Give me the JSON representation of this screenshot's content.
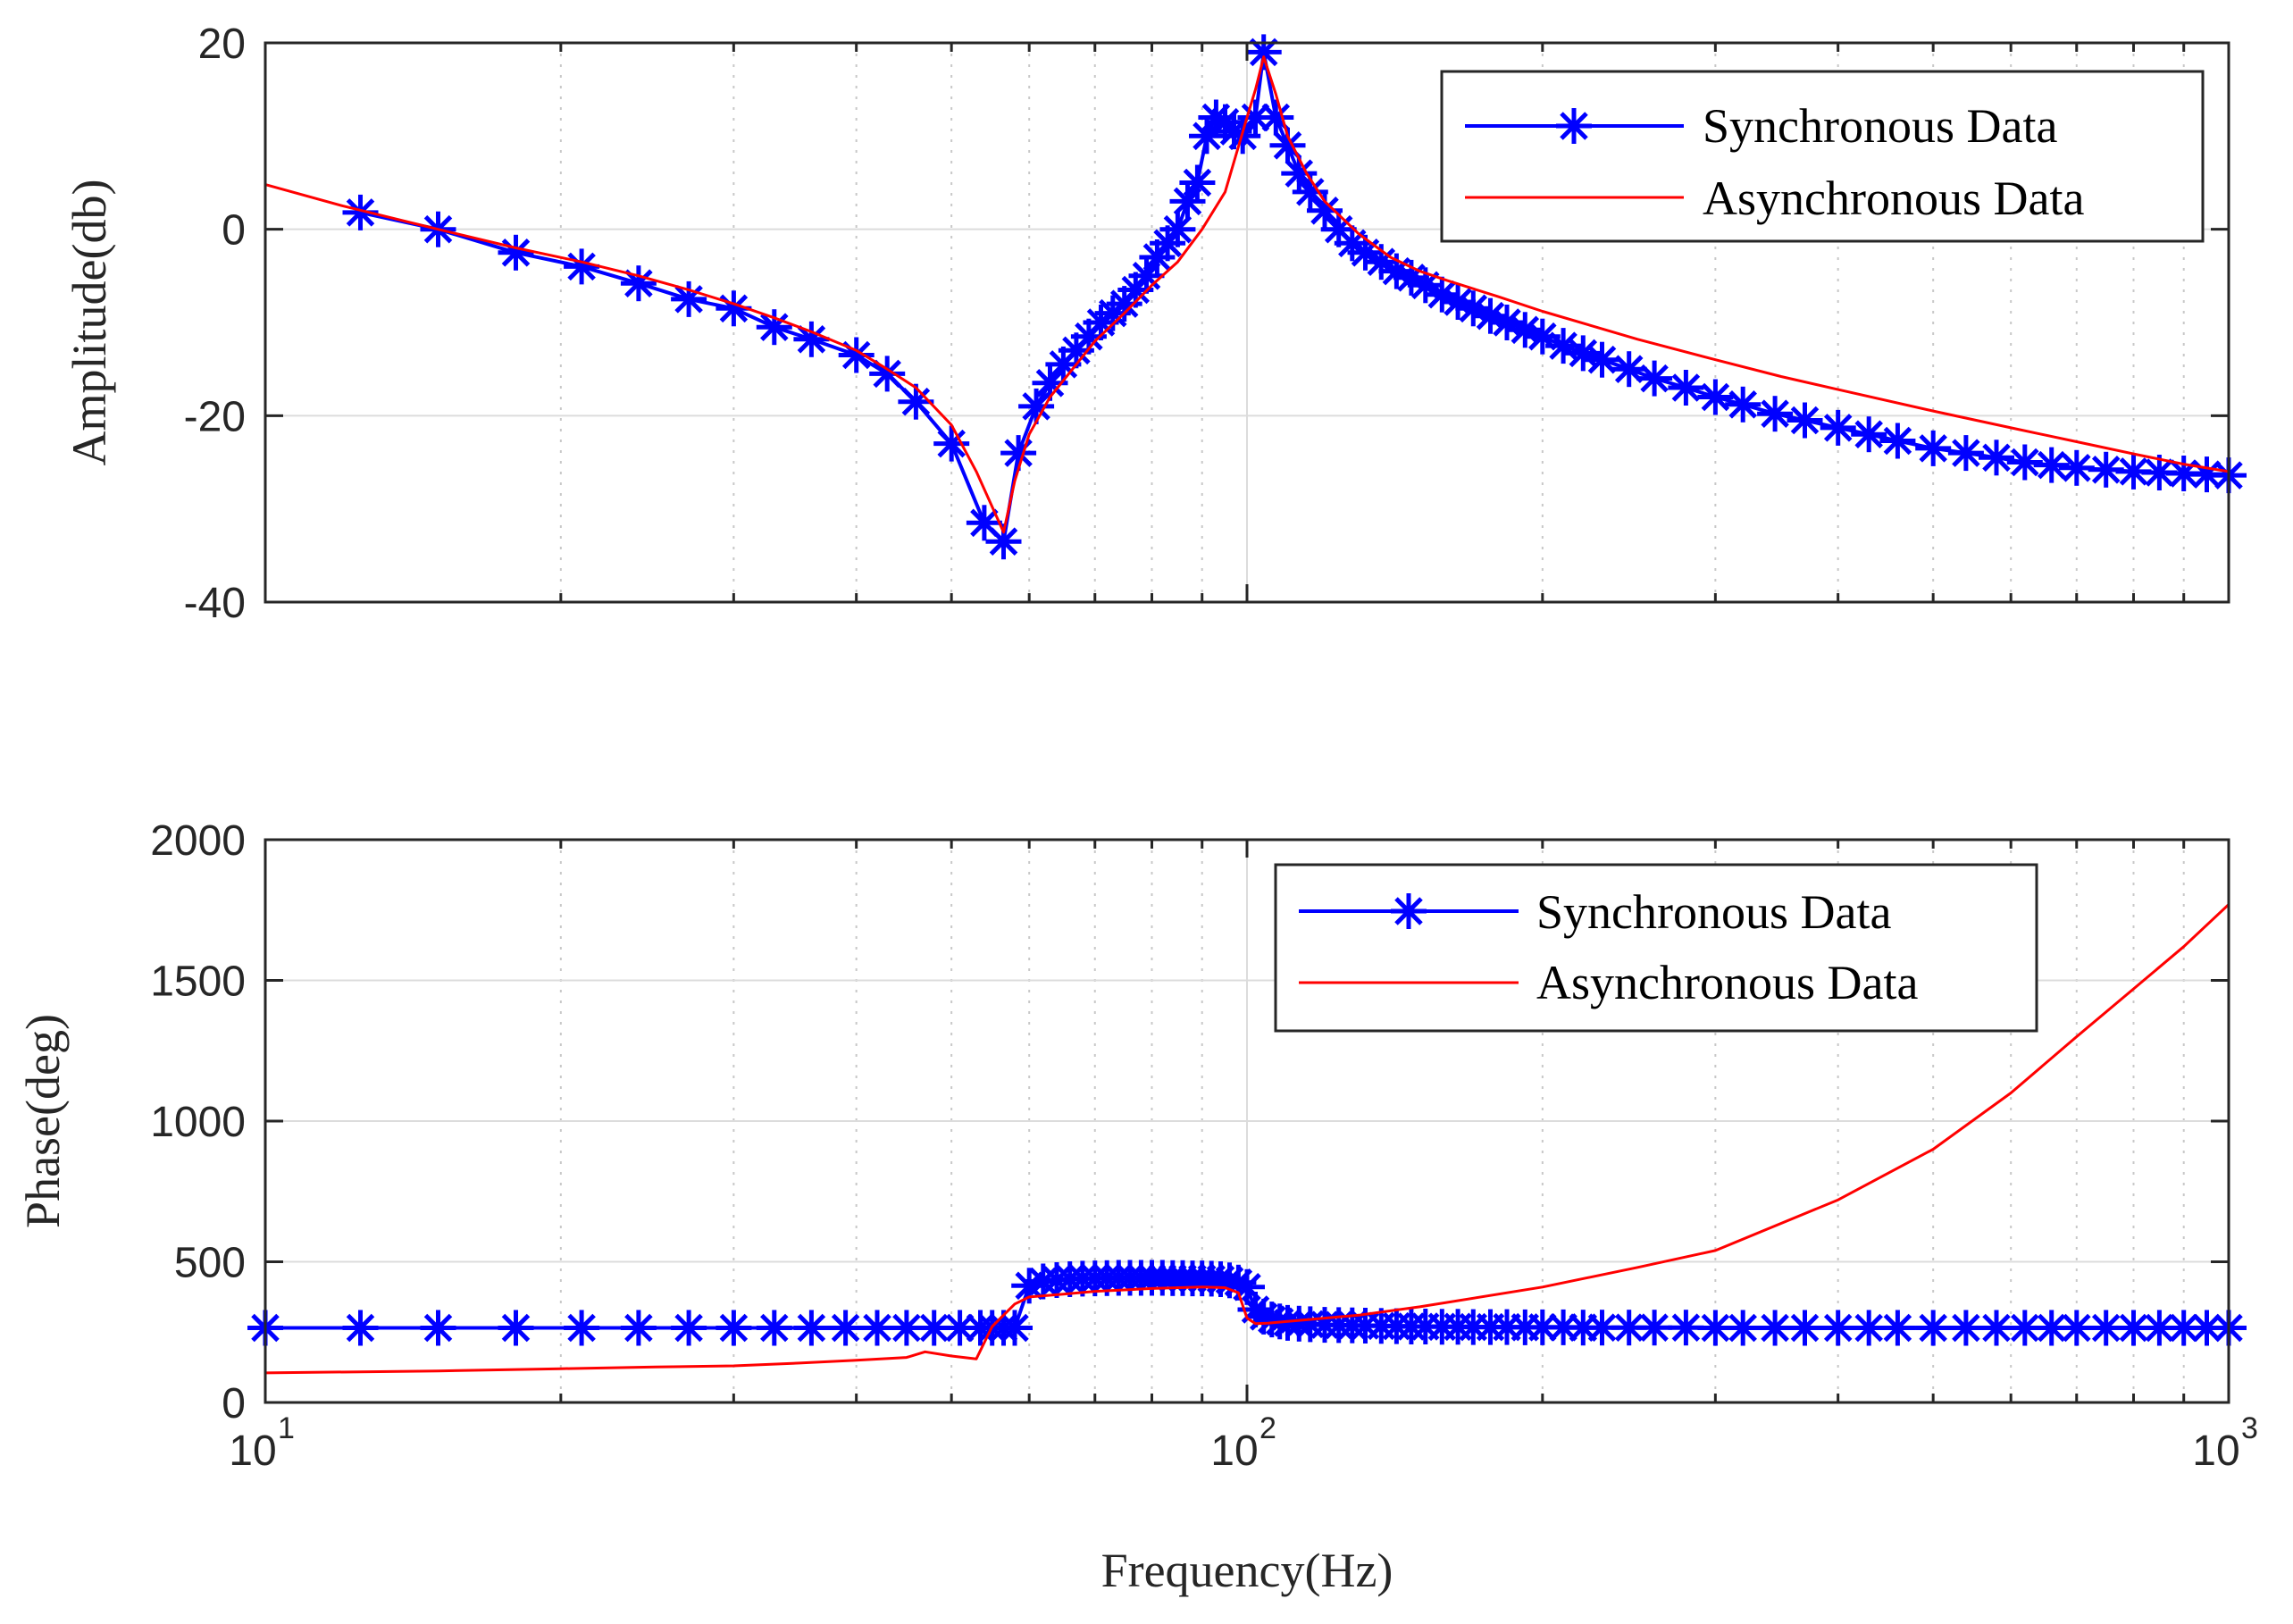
{
  "chart_data": [
    {
      "type": "line",
      "panel": "amplitude",
      "xscale": "log",
      "xlim": [
        10,
        1000
      ],
      "ylim": [
        -40,
        20
      ],
      "yticks": [
        -40,
        -20,
        0,
        20
      ],
      "ytick_labels": [
        "-40",
        "-20",
        "0",
        "20"
      ],
      "ylabel": "Amplitude(db)",
      "xlabel": "",
      "grid": true,
      "legend_position": "top-right",
      "series": [
        {
          "name": "Synchronous Data",
          "color": "#0000ff",
          "marker": "asterisk",
          "x": [
            12.5,
            15,
            18,
            21,
            24,
            27,
            30,
            33,
            36,
            40,
            43,
            46,
            50,
            54,
            56.5,
            58.5,
            61,
            63,
            65,
            67,
            69,
            71,
            73,
            75,
            77,
            79,
            81,
            83,
            85,
            87,
            89,
            91,
            93,
            95,
            97,
            99,
            102,
            104,
            107,
            110,
            113,
            116,
            120,
            124,
            128,
            132,
            137,
            142,
            147,
            152,
            158,
            164,
            170,
            177,
            184,
            192,
            200,
            210,
            220,
            230,
            245,
            260,
            280,
            300,
            320,
            345,
            370,
            400,
            430,
            460,
            500,
            540,
            580,
            620,
            660,
            700,
            750,
            800,
            850,
            900,
            950,
            1000
          ],
          "y": [
            1.8,
            0.0,
            -2.5,
            -4.0,
            -5.8,
            -7.5,
            -8.5,
            -10.5,
            -11.8,
            -13.5,
            -15.5,
            -18.5,
            -23.0,
            -31.5,
            -33.5,
            -24.0,
            -19.0,
            -16.5,
            -14.5,
            -13.0,
            -11.5,
            -10.0,
            -9.0,
            -8.0,
            -6.5,
            -5.0,
            -3.0,
            -1.5,
            0.0,
            3.0,
            5.0,
            10.0,
            12.0,
            11.5,
            10.5,
            10.0,
            12.0,
            19.0,
            12.0,
            9.0,
            6.0,
            4.0,
            2.0,
            0.0,
            -1.5,
            -2.5,
            -3.5,
            -4.5,
            -5.2,
            -6.0,
            -7.0,
            -7.8,
            -8.5,
            -9.3,
            -10.0,
            -10.8,
            -11.5,
            -12.5,
            -13.3,
            -14.0,
            -15.0,
            -16.0,
            -17.0,
            -18.0,
            -18.8,
            -19.8,
            -20.5,
            -21.3,
            -22.0,
            -22.7,
            -23.5,
            -24.0,
            -24.5,
            -25.0,
            -25.3,
            -25.6,
            -25.8,
            -26.0,
            -26.1,
            -26.2,
            -26.3,
            -26.4
          ]
        },
        {
          "name": "Asynchronous Data",
          "color": "#ff0000",
          "marker": "none",
          "x": [
            10,
            12,
            15,
            18,
            21,
            24,
            27,
            30,
            33,
            36,
            40,
            43,
            46,
            50,
            53,
            56.5,
            58,
            60,
            63,
            67,
            70,
            75,
            80,
            85,
            90,
            95,
            100,
            102,
            104,
            107,
            110,
            115,
            120,
            130,
            140,
            150,
            160,
            180,
            200,
            250,
            300,
            350,
            400,
            500,
            600,
            700,
            800,
            900,
            1000
          ],
          "y": [
            4.8,
            2.5,
            0.0,
            -2.0,
            -3.5,
            -5.0,
            -6.5,
            -8.0,
            -9.5,
            -11.0,
            -13.0,
            -15.0,
            -17.0,
            -21.0,
            -26.0,
            -32.5,
            -27.0,
            -22.0,
            -18.0,
            -14.5,
            -12.0,
            -9.0,
            -6.0,
            -3.5,
            0.0,
            4.0,
            12.0,
            15.0,
            18.5,
            14.5,
            10.0,
            6.0,
            3.0,
            -0.5,
            -3.0,
            -4.5,
            -5.5,
            -7.2,
            -8.8,
            -11.8,
            -14.0,
            -15.8,
            -17.2,
            -19.5,
            -21.3,
            -22.8,
            -24.1,
            -25.2,
            -26.0
          ]
        }
      ]
    },
    {
      "type": "line",
      "panel": "phase",
      "xscale": "log",
      "xlim": [
        10,
        1000
      ],
      "ylim": [
        0,
        2000
      ],
      "yticks": [
        0,
        500,
        1000,
        1500,
        2000
      ],
      "ytick_labels": [
        "0",
        "500",
        "1000",
        "1500",
        "2000"
      ],
      "ylabel": "Phase(deg)",
      "xlabel": "Frequency(Hz)",
      "xtick_bases": [
        "10",
        "10",
        "10"
      ],
      "xtick_exponents": [
        "1",
        "2",
        "3"
      ],
      "grid": true,
      "legend_position": "top-right",
      "series": [
        {
          "name": "Synchronous Data",
          "color": "#0000ff",
          "marker": "asterisk",
          "x": [
            10,
            12.5,
            15,
            18,
            21,
            24,
            27,
            30,
            33,
            36,
            39,
            42,
            45,
            48,
            51,
            53.5,
            55,
            56.5,
            58,
            60,
            62,
            64,
            66,
            68,
            70,
            72,
            74,
            76,
            78,
            80,
            82,
            84,
            86,
            88,
            90,
            92,
            94,
            96,
            98,
            100,
            102,
            104,
            106,
            108,
            110,
            113,
            116,
            120,
            124,
            128,
            132,
            137,
            142,
            147,
            152,
            158,
            164,
            170,
            177,
            184,
            192,
            200,
            210,
            220,
            230,
            245,
            260,
            280,
            300,
            320,
            345,
            370,
            400,
            430,
            460,
            500,
            540,
            580,
            620,
            660,
            700,
            750,
            800,
            850,
            900,
            950,
            1000
          ],
          "y": [
            265,
            265,
            265,
            265,
            265,
            265,
            265,
            265,
            265,
            265,
            265,
            265,
            265,
            265,
            265,
            265,
            265,
            265,
            265,
            415,
            430,
            435,
            438,
            440,
            441,
            442,
            443,
            443,
            443,
            443,
            443,
            442,
            442,
            441,
            441,
            440,
            438,
            434,
            426,
            410,
            330,
            305,
            295,
            288,
            283,
            280,
            278,
            276,
            275,
            274,
            273,
            272,
            271,
            270,
            270,
            269,
            269,
            268,
            268,
            268,
            267,
            267,
            267,
            266,
            266,
            266,
            266,
            266,
            265,
            265,
            265,
            265,
            265,
            265,
            265,
            265,
            265,
            265,
            265,
            265,
            265,
            265,
            265,
            265,
            265,
            265,
            265
          ]
        },
        {
          "name": "Asynchronous Data",
          "color": "#ff0000",
          "marker": "none",
          "x": [
            10,
            15,
            20,
            25,
            30,
            35,
            40,
            45,
            47,
            50,
            53,
            55,
            58,
            60,
            65,
            70,
            80,
            90,
            95,
            98,
            100,
            102,
            105,
            110,
            130,
            150,
            200,
            250,
            300,
            400,
            500,
            600,
            700,
            800,
            900,
            1000
          ],
          "y": [
            105,
            112,
            120,
            126,
            130,
            140,
            150,
            160,
            180,
            165,
            155,
            270,
            350,
            375,
            385,
            395,
            405,
            410,
            408,
            390,
            300,
            280,
            282,
            288,
            310,
            340,
            410,
            480,
            540,
            720,
            900,
            1100,
            1300,
            1470,
            1620,
            1770
          ]
        }
      ]
    }
  ]
}
